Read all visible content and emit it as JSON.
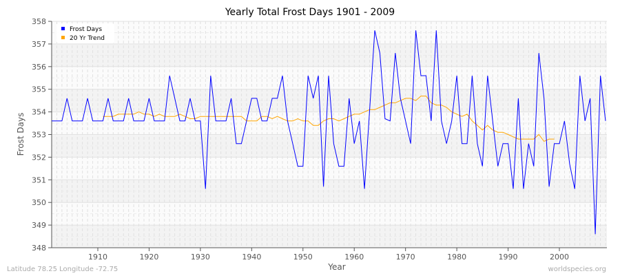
{
  "chart_data": {
    "type": "line",
    "title": "Yearly Total Frost Days 1901 - 2009",
    "xlabel": "Year",
    "ylabel": "Frost Days",
    "xlim": [
      1901,
      2009
    ],
    "ylim": [
      348,
      358
    ],
    "xticks": [
      1910,
      1920,
      1930,
      1940,
      1950,
      1960,
      1970,
      1980,
      1990,
      2000
    ],
    "yticks": [
      348,
      349,
      350,
      351,
      352,
      353,
      354,
      355,
      356,
      357,
      358
    ],
    "grid": true,
    "legend": "top-left",
    "series": [
      {
        "name": "Frost Days",
        "color": "#0000ff",
        "start_year": 1901,
        "values": [
          353.6,
          353.6,
          353.6,
          354.6,
          353.6,
          353.6,
          353.6,
          354.6,
          353.6,
          353.6,
          353.6,
          354.6,
          353.6,
          353.6,
          353.6,
          354.6,
          353.6,
          353.6,
          353.6,
          354.6,
          353.6,
          353.6,
          353.6,
          355.6,
          354.6,
          353.6,
          353.6,
          354.6,
          353.6,
          353.6,
          350.6,
          355.6,
          353.6,
          353.6,
          353.6,
          354.6,
          352.6,
          352.6,
          353.6,
          354.6,
          354.6,
          353.6,
          353.6,
          354.6,
          354.6,
          355.6,
          353.6,
          352.6,
          351.6,
          351.6,
          355.6,
          354.6,
          355.6,
          350.7,
          355.6,
          352.6,
          351.6,
          351.6,
          354.6,
          352.6,
          353.6,
          350.6,
          354.1,
          357.6,
          356.6,
          353.7,
          353.6,
          356.6,
          354.6,
          353.6,
          352.6,
          357.6,
          355.6,
          355.6,
          353.6,
          357.6,
          353.6,
          352.6,
          353.6,
          355.6,
          352.6,
          352.6,
          355.6,
          352.6,
          351.6,
          355.6,
          353.6,
          351.6,
          352.6,
          352.6,
          350.6,
          354.6,
          350.6,
          352.6,
          351.6,
          356.6,
          354.6,
          350.7,
          352.6,
          352.6,
          353.6,
          351.7,
          350.6,
          355.6,
          353.6,
          354.6,
          348.6,
          355.6,
          353.6
        ]
      },
      {
        "name": "20 Yr Trend",
        "color": "#ffa500",
        "start_year": 1911,
        "values": [
          353.8,
          353.8,
          353.8,
          353.9,
          353.9,
          353.9,
          353.9,
          354.0,
          353.9,
          353.9,
          353.8,
          353.9,
          353.8,
          353.8,
          353.8,
          353.9,
          353.8,
          353.7,
          353.7,
          353.8,
          353.8,
          353.8,
          353.8,
          353.8,
          353.8,
          353.8,
          353.8,
          353.8,
          353.6,
          353.6,
          353.6,
          353.8,
          353.8,
          353.7,
          353.8,
          353.7,
          353.6,
          353.6,
          353.7,
          353.6,
          353.6,
          353.4,
          353.4,
          353.6,
          353.7,
          353.7,
          353.6,
          353.7,
          353.8,
          353.9,
          353.9,
          354.0,
          354.1,
          354.1,
          354.2,
          354.3,
          354.4,
          354.4,
          354.5,
          354.6,
          354.6,
          354.5,
          354.7,
          354.7,
          354.4,
          354.3,
          354.3,
          354.2,
          354.0,
          353.9,
          353.8,
          353.9,
          353.6,
          353.4,
          353.2,
          353.4,
          353.2,
          353.1,
          353.1,
          353.0,
          352.9,
          352.8,
          352.8,
          352.8,
          352.8,
          353.0,
          352.7,
          352.8,
          352.8
        ]
      }
    ]
  },
  "footer": {
    "location": "Latitude 78.25 Longitude -72.75",
    "source": "worldspecies.org"
  }
}
